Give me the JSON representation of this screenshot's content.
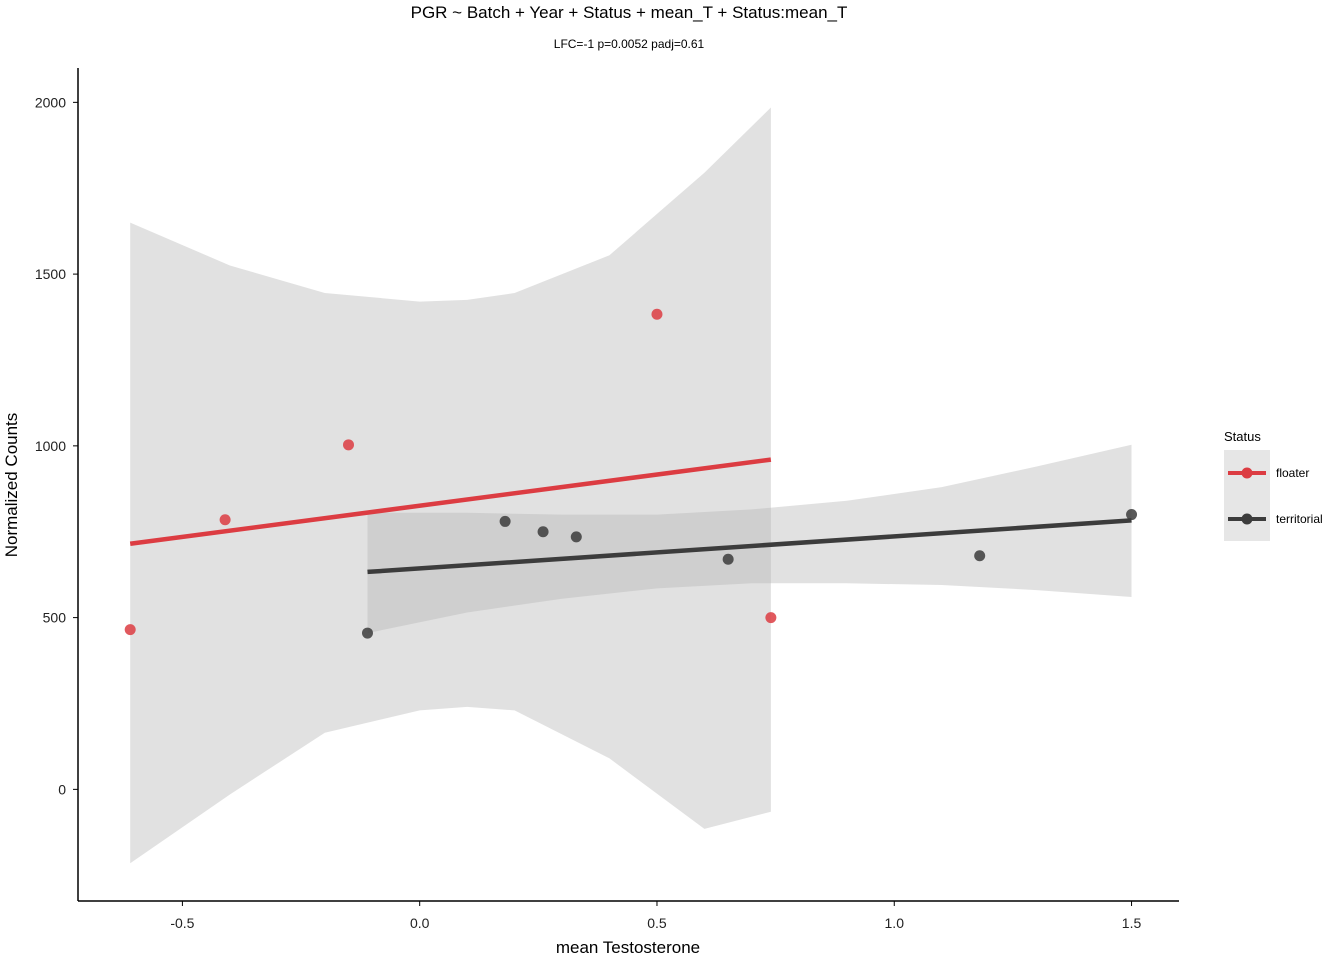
{
  "chart_data": {
    "type": "scatter",
    "title": "PGR ~ Batch + Year + Status + mean_T + Status:mean_T",
    "subtitle": "LFC=-1 p=0.0052 padj=0.61",
    "xlabel": "mean Testosterone",
    "ylabel": "Normalized Counts",
    "xlim": [
      -0.72,
      1.6
    ],
    "ylim": [
      -325,
      2100
    ],
    "xticks": [
      -0.5,
      0.0,
      0.5,
      1.0,
      1.5
    ],
    "xtick_labels": [
      "-0.5",
      "0.0",
      "0.5",
      "1.0",
      "1.5"
    ],
    "yticks": [
      0,
      500,
      1000,
      1500,
      2000
    ],
    "ytick_labels": [
      "0",
      "500",
      "1000",
      "1500",
      "2000"
    ],
    "grid": false,
    "legend_position": "right",
    "legend_title": "Status",
    "series": [
      {
        "name": "floater",
        "color": "#dc3c42",
        "x": [
          -0.61,
          -0.41,
          -0.15,
          0.5,
          0.74
        ],
        "y": [
          465,
          785,
          1003,
          1383,
          500
        ],
        "fit": {
          "x": [
            -0.61,
            0.74
          ],
          "y": [
            715,
            960
          ]
        },
        "band": {
          "x": [
            -0.61,
            -0.4,
            -0.2,
            0.0,
            0.1,
            0.2,
            0.4,
            0.6,
            0.74
          ],
          "upper": [
            1650,
            1525,
            1445,
            1420,
            1425,
            1445,
            1555,
            1795,
            1985
          ],
          "lower": [
            -215,
            -15,
            165,
            230,
            240,
            230,
            90,
            -115,
            -65
          ]
        }
      },
      {
        "name": "territorial",
        "color": "#3c3c3c",
        "x": [
          -0.11,
          0.18,
          0.26,
          0.33,
          0.65,
          1.18,
          1.5
        ],
        "y": [
          455,
          780,
          750,
          735,
          670,
          680,
          800
        ],
        "fit": {
          "x": [
            -0.11,
            1.5
          ],
          "y": [
            633,
            783
          ]
        },
        "band": {
          "x": [
            -0.11,
            0.1,
            0.3,
            0.5,
            0.7,
            0.9,
            1.1,
            1.3,
            1.5
          ],
          "upper": [
            805,
            805,
            800,
            800,
            815,
            840,
            880,
            940,
            1003
          ],
          "lower": [
            455,
            515,
            555,
            585,
            600,
            600,
            595,
            580,
            560
          ]
        }
      }
    ]
  }
}
